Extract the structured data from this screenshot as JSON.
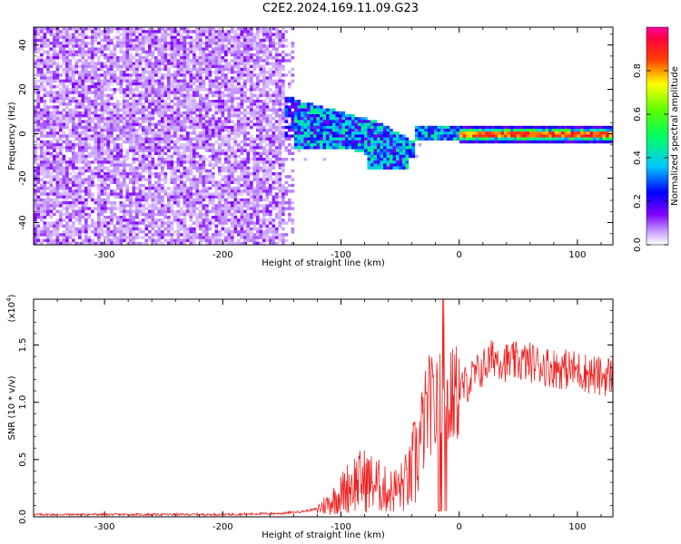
{
  "title": "C2E2.2024.169.11.09.G23",
  "chart_data": [
    {
      "type": "heatmap",
      "xlabel": "Height of straight line (km)",
      "ylabel": "Frequency (Hz)",
      "xlim": [
        -360,
        130
      ],
      "ylim": [
        -50,
        48
      ],
      "x_ticks": [
        -300,
        -200,
        -100,
        0,
        100
      ],
      "y_ticks": [
        -40,
        -20,
        0,
        20,
        40
      ],
      "colorbar": {
        "label": "Normalized spectral amplitude",
        "range": [
          0.0,
          1.0
        ],
        "ticks": [
          0.0,
          0.2,
          0.4,
          0.6,
          0.8
        ],
        "colors": [
          "#ffffff",
          "#8000ff",
          "#0000ff",
          "#00ffff",
          "#00ff00",
          "#ffff00",
          "#ff0000",
          "#ff00ff"
        ]
      },
      "regions": [
        {
          "x_range": [
            -360,
            -150
          ],
          "freq_range": [
            -50,
            48
          ],
          "amplitude": 0.05
        },
        {
          "x_range": [
            -150,
            -40
          ],
          "freq_center": 5,
          "freq_halfwidth": 8,
          "amplitude": 0.35
        },
        {
          "x_range": [
            -40,
            0
          ],
          "freq_center": 1,
          "freq_halfwidth": 3,
          "amplitude": 0.45
        },
        {
          "x_range": [
            0,
            130
          ],
          "freq_center": 0,
          "freq_halfwidth": 2,
          "amplitude": 0.9
        }
      ]
    },
    {
      "type": "line",
      "xlabel": "Height of straight line (km)",
      "ylabel": "SNR (10 * v/v)",
      "y_multiplier": "(x10",
      "y_multiplier_exp": "4",
      "y_multiplier_close": ")",
      "xlim": [
        -360,
        130
      ],
      "ylim": [
        0,
        1.9
      ],
      "x_ticks": [
        -300,
        -200,
        -100,
        0,
        100
      ],
      "y_ticks": [
        0.0,
        0.5,
        1.0,
        1.5
      ],
      "series_color": "#ee2222",
      "x": [
        -360,
        -300,
        -250,
        -200,
        -150,
        -130,
        -120,
        -110,
        -100,
        -90,
        -80,
        -70,
        -60,
        -50,
        -40,
        -35,
        -30,
        -25,
        -20,
        -15,
        -10,
        -5,
        0,
        10,
        20,
        30,
        40,
        60,
        80,
        100,
        120,
        130
      ],
      "y": [
        0.02,
        0.02,
        0.02,
        0.02,
        0.03,
        0.05,
        0.07,
        0.12,
        0.2,
        0.3,
        0.32,
        0.28,
        0.22,
        0.25,
        0.35,
        0.55,
        0.8,
        1.0,
        0.9,
        1.1,
        1.0,
        1.05,
        1.1,
        1.2,
        1.3,
        1.4,
        1.35,
        1.35,
        1.3,
        1.28,
        1.22,
        1.25
      ]
    }
  ]
}
